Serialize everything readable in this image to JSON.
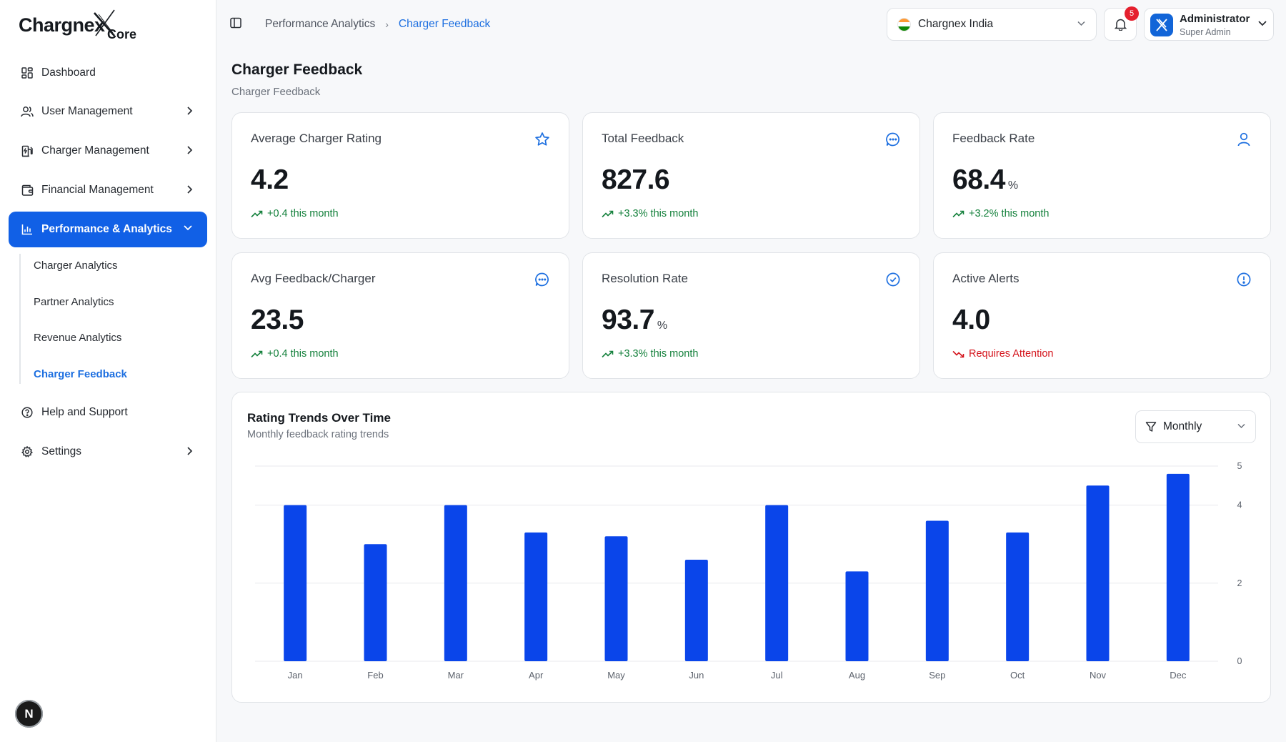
{
  "app": {
    "brand": "Chargnex",
    "brand_sub": "Core"
  },
  "sidebar": {
    "items": [
      {
        "label": "Dashboard"
      },
      {
        "label": "User Management"
      },
      {
        "label": "Charger Management"
      },
      {
        "label": "Financial Management"
      },
      {
        "label": "Performance & Analytics"
      },
      {
        "label": "Help and Support"
      },
      {
        "label": "Settings"
      }
    ],
    "sub_items": [
      {
        "label": "Charger Analytics"
      },
      {
        "label": "Partner Analytics"
      },
      {
        "label": "Revenue Analytics"
      },
      {
        "label": "Charger Feedback"
      }
    ],
    "footer_badge": "N"
  },
  "breadcrumb": {
    "parent": "Performance Analytics",
    "current": "Charger Feedback"
  },
  "header": {
    "region": "Chargnex India",
    "notifications": "5",
    "user_name": "Administrator",
    "user_role": "Super Admin"
  },
  "page": {
    "title": "Charger Feedback",
    "subtitle": "Charger Feedback"
  },
  "cards": [
    {
      "label": "Average Charger Rating",
      "value": "4.2",
      "unit": "",
      "trend": "+0.4 this month",
      "trend_dir": "up",
      "icon": "star-icon"
    },
    {
      "label": "Total Feedback",
      "value": "827.6",
      "unit": "",
      "trend": "+3.3% this month",
      "trend_dir": "up",
      "icon": "chat-icon"
    },
    {
      "label": "Feedback Rate",
      "value": "68.4",
      "unit": "%",
      "trend": "+3.2% this month",
      "trend_dir": "up",
      "icon": "user-icon"
    },
    {
      "label": "Avg Feedback/Charger",
      "value": "23.5",
      "unit": "",
      "trend": "+0.4 this month",
      "trend_dir": "up",
      "icon": "chat-icon"
    },
    {
      "label": "Resolution Rate",
      "value": "93.7",
      "unit": "%",
      "trend": "+3.3% this month",
      "trend_dir": "up",
      "icon": "check-circle-icon"
    },
    {
      "label": "Active Alerts",
      "value": "4.0",
      "unit": "",
      "trend": "Requires Attention",
      "trend_dir": "down",
      "icon": "alert-circle-icon"
    }
  ],
  "colors": {
    "accent": "#1160e6",
    "bar": "#0a45ea",
    "trend_up": "#13803b",
    "trend_down": "#d4141c"
  },
  "chart": {
    "title": "Rating Trends Over Time",
    "subtitle": "Monthly feedback rating trends",
    "period": "Monthly"
  },
  "chart_data": {
    "type": "bar",
    "categories": [
      "Jan",
      "Feb",
      "Mar",
      "Apr",
      "May",
      "Jun",
      "Jul",
      "Aug",
      "Sep",
      "Oct",
      "Nov",
      "Dec"
    ],
    "values": [
      4.0,
      3.0,
      4.0,
      3.3,
      3.2,
      2.6,
      4.0,
      2.3,
      3.6,
      3.3,
      4.5,
      4.8
    ],
    "yticks": [
      0,
      2,
      4,
      5
    ],
    "ylim": [
      0,
      5
    ],
    "y_axis_side": "right",
    "grid": true,
    "legend": false
  }
}
